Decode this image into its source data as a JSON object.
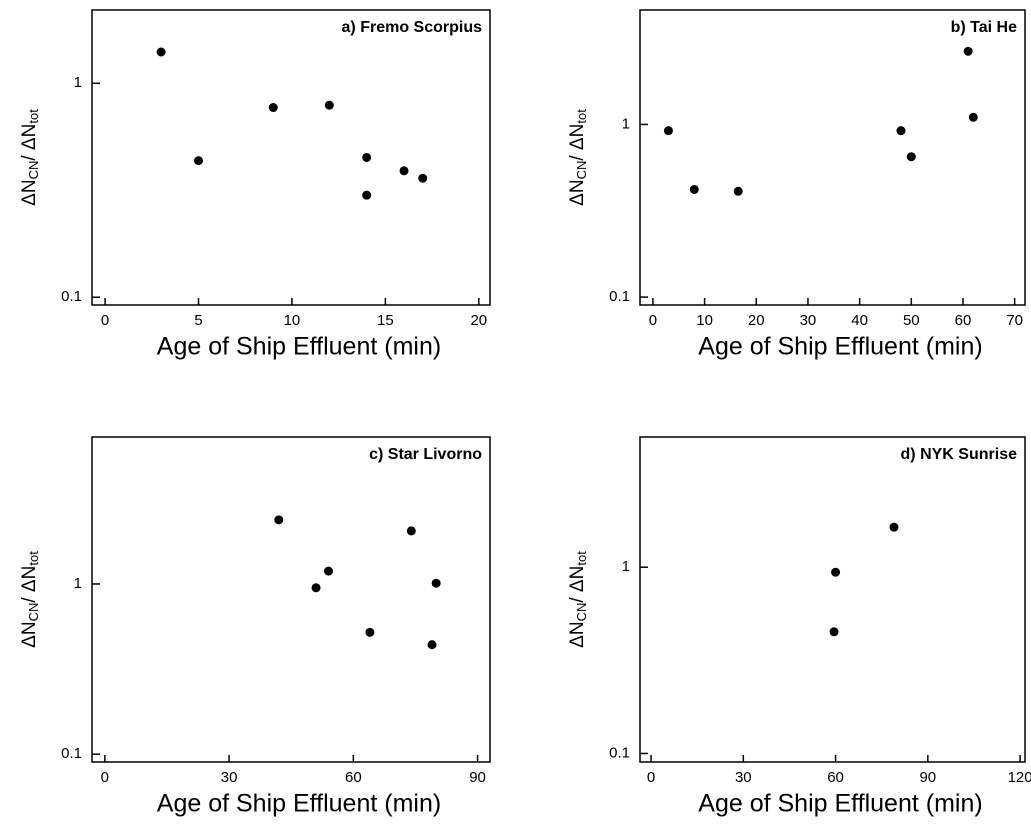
{
  "chart_data": [
    {
      "type": "scatter",
      "title": "a) Fremo Scorpius",
      "xlabel": "Age of Ship Effluent (min)",
      "ylabel": [
        "ΔN",
        "CN",
        "/ ΔN",
        "tot"
      ],
      "x": [
        3,
        5,
        9,
        12,
        14,
        14,
        16,
        17
      ],
      "values": [
        1.4,
        0.435,
        0.77,
        0.79,
        0.45,
        0.3,
        0.39,
        0.36
      ],
      "color": "#000000",
      "log_y": true,
      "xlim": [
        -0.7,
        20.6
      ],
      "xticks": [
        0,
        5,
        10,
        15,
        20
      ],
      "ylim": [
        0.092,
        2.2
      ],
      "yticks": [
        0.1,
        1
      ]
    },
    {
      "type": "scatter",
      "title": "b) Tai He",
      "xlabel": "Age of Ship Effluent (min)",
      "ylabel": [
        "ΔN",
        "CN",
        "/ ΔN",
        "tot"
      ],
      "x": [
        3,
        8,
        16.5,
        48,
        50,
        61,
        62
      ],
      "values": [
        0.92,
        0.42,
        0.41,
        0.92,
        0.65,
        2.65,
        1.1
      ],
      "color": "#000000",
      "log_y": true,
      "xlim": [
        -2.5,
        72
      ],
      "xticks": [
        0,
        10,
        20,
        30,
        40,
        50,
        60,
        70
      ],
      "ylim": [
        0.09,
        4.6
      ],
      "yticks": [
        0.1,
        1
      ]
    },
    {
      "type": "scatter",
      "title": "c) Star Livorno",
      "xlabel": "Age of Ship Effluent (min)",
      "ylabel": [
        "ΔN",
        "CN",
        "/ ΔN",
        "tot"
      ],
      "x": [
        42,
        51,
        54,
        64,
        74,
        80,
        79
      ],
      "values": [
        2.38,
        0.95,
        1.19,
        0.52,
        2.05,
        1.01,
        0.44
      ],
      "color": "#000000",
      "log_y": true,
      "xlim": [
        -3.1,
        93
      ],
      "xticks": [
        0,
        30,
        60,
        90
      ],
      "ylim": [
        0.09,
        7.3
      ],
      "yticks": [
        0.1,
        1
      ]
    },
    {
      "type": "scatter",
      "title": "d) NYK Sunrise",
      "xlabel": "Age of Ship Effluent (min)",
      "ylabel": [
        "ΔN",
        "CN",
        "/ ΔN",
        "tot"
      ],
      "x": [
        60,
        59.5,
        79
      ],
      "values": [
        0.94,
        0.45,
        1.64
      ],
      "color": "#000000",
      "log_y": true,
      "xlim": [
        -3.6,
        121.6
      ],
      "xticks": [
        0,
        30,
        60,
        90,
        120
      ],
      "ylim": [
        0.09,
        5.0
      ],
      "yticks": [
        0.1,
        1
      ]
    }
  ]
}
